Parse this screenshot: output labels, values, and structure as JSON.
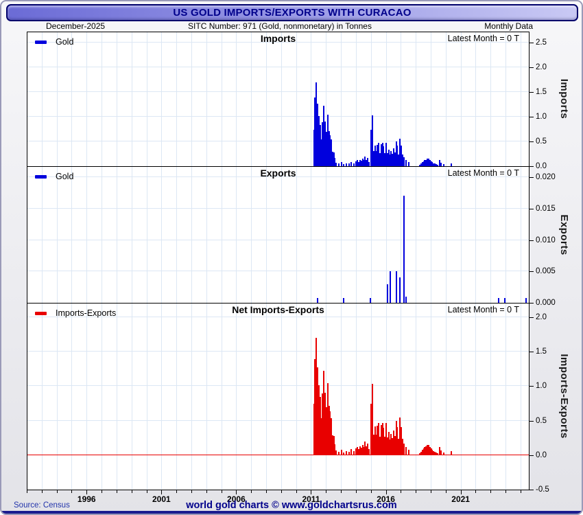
{
  "window": {
    "title": "US GOLD IMPORTS/EXPORTS WITH CURACAO"
  },
  "header": {
    "left": "December-2025",
    "center": "SITC Number: 971 (Gold, nonmonetary) in Tonnes",
    "right": "Monthly Data"
  },
  "footer": {
    "source": "Source: Census",
    "center": "world gold charts © www.goldchartsrus.com"
  },
  "colors": {
    "imports_bar": "#0000dd",
    "exports_bar": "#0000dd",
    "net_bar": "#e80000",
    "zero_line": "#e80000",
    "grid": "#dce7f4",
    "navy": "#00008b"
  },
  "chart_data": [
    {
      "type": "bar",
      "title": "Imports",
      "legend": "Gold",
      "annotation": "Latest Month = 0 T",
      "ylabel": "Imports",
      "series_color": "#0000dd",
      "xlim": [
        1992,
        2025.6
      ],
      "ylim": [
        0,
        2.722
      ],
      "xticks": [
        1996,
        2001,
        2006,
        2011,
        2016,
        2021
      ],
      "ytick_values": [
        0.0,
        0.5,
        1.0,
        1.5,
        2.0,
        2.5
      ],
      "ytick_labels": [
        "0.0",
        "0.5",
        "1.0",
        "1.5",
        "2.0",
        "2.5"
      ],
      "grid": true,
      "points": [
        [
          2011.17,
          0.74
        ],
        [
          2011.25,
          1.39
        ],
        [
          2011.33,
          1.7
        ],
        [
          2011.42,
          1.27
        ],
        [
          2011.5,
          1.01
        ],
        [
          2011.58,
          0.84
        ],
        [
          2011.67,
          0.54
        ],
        [
          2011.75,
          0.89
        ],
        [
          2011.83,
          1.22
        ],
        [
          2011.92,
          0.9
        ],
        [
          2012.0,
          0.69
        ],
        [
          2012.08,
          1.04
        ],
        [
          2012.17,
          0.71
        ],
        [
          2012.25,
          0.63
        ],
        [
          2012.33,
          0.54
        ],
        [
          2012.42,
          0.29
        ],
        [
          2012.5,
          0.28
        ],
        [
          2012.58,
          0.16
        ],
        [
          2012.67,
          0.07
        ],
        [
          2012.83,
          0.05
        ],
        [
          2013.0,
          0.08
        ],
        [
          2013.17,
          0.04
        ],
        [
          2013.33,
          0.06
        ],
        [
          2013.5,
          0.05
        ],
        [
          2013.67,
          0.09
        ],
        [
          2013.83,
          0.06
        ],
        [
          2014.0,
          0.1
        ],
        [
          2014.08,
          0.12
        ],
        [
          2014.17,
          0.09
        ],
        [
          2014.25,
          0.13
        ],
        [
          2014.33,
          0.11
        ],
        [
          2014.42,
          0.15
        ],
        [
          2014.5,
          0.12
        ],
        [
          2014.58,
          0.2
        ],
        [
          2014.67,
          0.13
        ],
        [
          2014.75,
          0.17
        ],
        [
          2014.83,
          0.09
        ],
        [
          2015.0,
          0.74
        ],
        [
          2015.08,
          1.03
        ],
        [
          2015.17,
          0.3
        ],
        [
          2015.25,
          0.42
        ],
        [
          2015.33,
          0.3
        ],
        [
          2015.42,
          0.43
        ],
        [
          2015.5,
          0.47
        ],
        [
          2015.58,
          0.27
        ],
        [
          2015.67,
          0.44
        ],
        [
          2015.75,
          0.47
        ],
        [
          2015.83,
          0.4
        ],
        [
          2015.92,
          0.27
        ],
        [
          2016.0,
          0.47
        ],
        [
          2016.08,
          0.26
        ],
        [
          2016.17,
          0.34
        ],
        [
          2016.25,
          0.23
        ],
        [
          2016.33,
          0.31
        ],
        [
          2016.42,
          0.25
        ],
        [
          2016.5,
          0.36
        ],
        [
          2016.58,
          0.28
        ],
        [
          2016.67,
          0.5
        ],
        [
          2016.75,
          0.41
        ],
        [
          2016.83,
          0.24
        ],
        [
          2016.92,
          0.55
        ],
        [
          2017.0,
          0.41
        ],
        [
          2017.08,
          0.24
        ],
        [
          2017.17,
          0.18
        ],
        [
          2017.33,
          0.12
        ],
        [
          2017.5,
          0.08
        ],
        [
          2018.25,
          0.03
        ],
        [
          2018.33,
          0.05
        ],
        [
          2018.42,
          0.08
        ],
        [
          2018.5,
          0.1
        ],
        [
          2018.58,
          0.12
        ],
        [
          2018.67,
          0.13
        ],
        [
          2018.75,
          0.15
        ],
        [
          2018.83,
          0.15
        ],
        [
          2018.92,
          0.12
        ],
        [
          2019.0,
          0.1
        ],
        [
          2019.08,
          0.08
        ],
        [
          2019.17,
          0.06
        ],
        [
          2019.25,
          0.05
        ],
        [
          2019.33,
          0.04
        ],
        [
          2019.42,
          0.03
        ],
        [
          2019.58,
          0.12
        ],
        [
          2019.67,
          0.07
        ],
        [
          2019.83,
          0.04
        ],
        [
          2020.33,
          0.06
        ]
      ]
    },
    {
      "type": "bar",
      "title": "Exports",
      "legend": "Gold",
      "annotation": "Latest Month = 0 T",
      "ylabel": "Exports",
      "series_color": "#0000dd",
      "xlim": [
        1992,
        2025.6
      ],
      "ylim": [
        0,
        0.02175
      ],
      "xticks": [
        1996,
        2001,
        2006,
        2011,
        2016,
        2021
      ],
      "ytick_values": [
        0.0,
        0.005,
        0.01,
        0.015,
        0.02
      ],
      "ytick_labels": [
        "0.000",
        "0.005",
        "0.010",
        "0.015",
        "0.020"
      ],
      "grid": true,
      "points": [
        [
          2011.42,
          0.0008
        ],
        [
          2013.17,
          0.0008
        ],
        [
          2014.92,
          0.0008
        ],
        [
          2016.08,
          0.003
        ],
        [
          2016.25,
          0.005
        ],
        [
          2016.67,
          0.005
        ],
        [
          2016.92,
          0.004
        ],
        [
          2017.17,
          0.017
        ],
        [
          2017.33,
          0.001
        ],
        [
          2023.5,
          0.0008
        ],
        [
          2023.92,
          0.0008
        ],
        [
          2025.33,
          0.0008
        ]
      ]
    },
    {
      "type": "bar",
      "title": "Net Imports-Exports",
      "legend": "Imports-Exports",
      "annotation": "Latest Month = 0 T",
      "ylabel": "Imports-Exports",
      "series_color": "#e80000",
      "xlim": [
        1992,
        2025.6
      ],
      "ylim": [
        -0.5,
        2.207
      ],
      "xticks": [
        1996,
        2001,
        2006,
        2011,
        2016,
        2021
      ],
      "ytick_values": [
        -0.5,
        0.0,
        0.5,
        1.0,
        1.5,
        2.0
      ],
      "ytick_labels": [
        "-0.5",
        "0.0",
        "0.5",
        "1.0",
        "1.5",
        "2.0"
      ],
      "grid": true,
      "zero_line": true,
      "derived": "imports_minus_exports"
    }
  ]
}
